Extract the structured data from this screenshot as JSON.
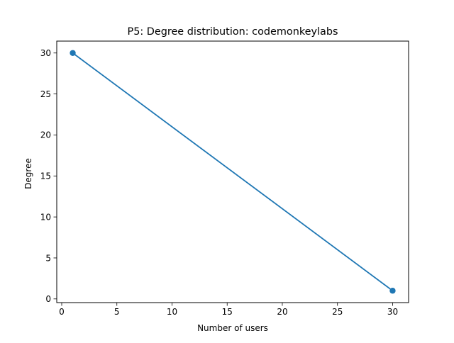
{
  "chart_data": {
    "type": "line",
    "title": "P5: Degree distribution: codemonkeylabs",
    "xlabel": "Number of users",
    "ylabel": "Degree",
    "xlim": [
      -0.45,
      31.45
    ],
    "ylim": [
      -0.45,
      31.45
    ],
    "xticks": [
      0,
      5,
      10,
      15,
      20,
      25,
      30
    ],
    "yticks": [
      0,
      5,
      10,
      15,
      20,
      25,
      30
    ],
    "grid": false,
    "series": [
      {
        "x": [
          1,
          30
        ],
        "y": [
          30,
          1
        ],
        "color": "#1f77b4",
        "marker": "circle"
      }
    ]
  }
}
